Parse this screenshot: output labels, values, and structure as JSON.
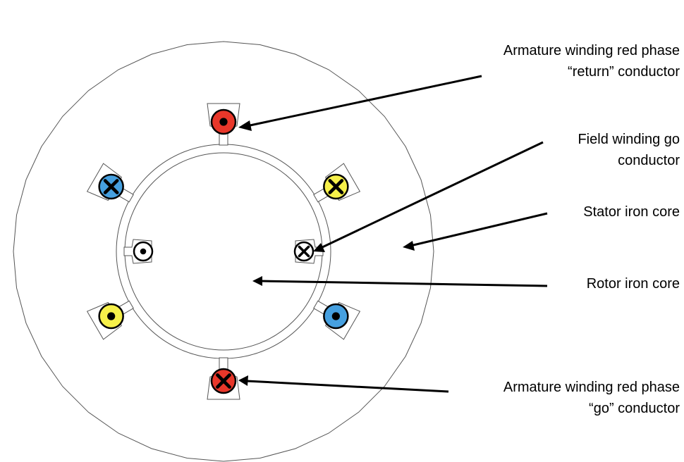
{
  "labels": {
    "armature_return": {
      "line1": "Armature winding red phase",
      "line2": "“return” conductor"
    },
    "field_go": {
      "line1": "Field winding go",
      "line2": "conductor"
    },
    "stator": "Stator iron core",
    "rotor": "Rotor iron core",
    "armature_go": {
      "line1": "Armature winding red phase",
      "line2": "“go” conductor"
    }
  },
  "colors": {
    "red_phase": "#e8372a",
    "yellow_phase": "#f6f04a",
    "blue_phase": "#46a0e0",
    "field": "#ffffff",
    "outline": "#555555",
    "arrow": "#000000"
  },
  "conductors": [
    {
      "id": "red-return",
      "phase": "red",
      "direction": "dot"
    },
    {
      "id": "yellow-upper-right",
      "phase": "yellow",
      "direction": "cross"
    },
    {
      "id": "blue-lower-right",
      "phase": "blue",
      "direction": "dot"
    },
    {
      "id": "red-go",
      "phase": "red",
      "direction": "cross"
    },
    {
      "id": "yellow-lower-left",
      "phase": "yellow",
      "direction": "dot"
    },
    {
      "id": "blue-upper-left",
      "phase": "blue",
      "direction": "cross"
    },
    {
      "id": "field-go",
      "phase": "field",
      "direction": "cross"
    },
    {
      "id": "field-return",
      "phase": "field",
      "direction": "dot"
    }
  ]
}
